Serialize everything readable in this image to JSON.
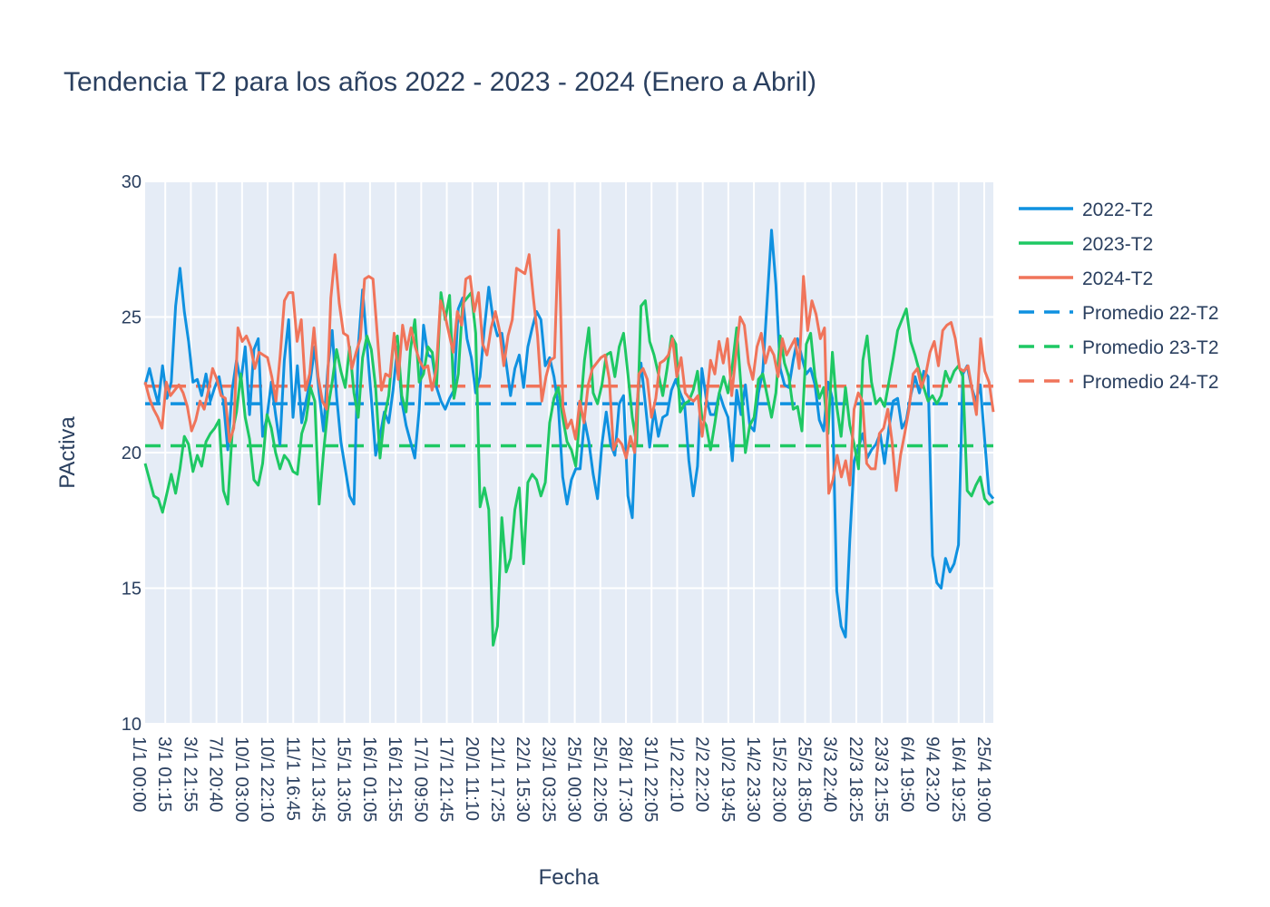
{
  "chart_data": {
    "type": "line",
    "title": "Tendencia T2 para los años 2022 - 2023 - 2024 (Enero a Abril)",
    "xlabel": "Fecha",
    "ylabel": "PActiva",
    "ylim": [
      10,
      30
    ],
    "yticks": [
      "10",
      "15",
      "20",
      "25",
      "30"
    ],
    "xticks": [
      "1/1 00:00",
      "3/1 01:15",
      "3/1 21:55",
      "7/1 20:40",
      "10/1 03:00",
      "10/1 22:10",
      "11/1 16:45",
      "12/1 13:45",
      "15/1 13:05",
      "16/1 01:05",
      "16/1 21:55",
      "17/1 09:50",
      "17/1 21:45",
      "20/1 11:10",
      "21/1 17:25",
      "22/1 15:30",
      "23/1 03:25",
      "25/1 00:30",
      "25/1 22:05",
      "28/1 17:30",
      "31/1 22:05",
      "1/2 22:10",
      "2/2 22:20",
      "10/2 19:45",
      "14/2 23:30",
      "15/2 23:00",
      "25/2 18:50",
      "3/3 22:40",
      "22/3 18:25",
      "23/3 21:55",
      "6/4 19:50",
      "9/4 23:20",
      "16/4 19:25",
      "25/4 19:00"
    ],
    "grid": true,
    "legend_position": "right",
    "series": [
      {
        "name": "2022-T2",
        "color": "#0f91e0",
        "style": "solid",
        "values": [
          22.5,
          23.1,
          22.4,
          21.8,
          23.2,
          22.0,
          22.6,
          25.4,
          26.8,
          25.2,
          24.1,
          22.6,
          22.7,
          22.1,
          22.9,
          21.9,
          22.4,
          22.8,
          21.9,
          20.1,
          22.3,
          23.4,
          22.6,
          23.9,
          21.4,
          23.8,
          24.2,
          20.6,
          21.3,
          22.6,
          21.4,
          20.3,
          23.4,
          24.9,
          21.3,
          23.2,
          21.1,
          21.9,
          22.7,
          23.9,
          22.2,
          20.8,
          23.1,
          24.5,
          22.1,
          20.4,
          19.4,
          18.4,
          18.1,
          23.9,
          26.0,
          24.0,
          22.0,
          19.9,
          20.6,
          21.5,
          21.1,
          22.3,
          23.9,
          21.9,
          21.0,
          20.4,
          19.8,
          21.6,
          24.7,
          23.6,
          23.5,
          22.4,
          21.9,
          21.6,
          22.0,
          22.3,
          25.3,
          25.7,
          24.2,
          23.5,
          22.2,
          22.8,
          24.6,
          26.1,
          24.9,
          24.3,
          24.4,
          23.3,
          22.1,
          23.1,
          23.6,
          22.4,
          23.9,
          24.6,
          25.2,
          24.9,
          23.2,
          23.5,
          22.8,
          21.7,
          19.1,
          18.1,
          19.0,
          19.4,
          19.4,
          21.2,
          20.4,
          19.2,
          18.3,
          20.3,
          21.5,
          20.3,
          19.9,
          21.8,
          22.1,
          18.4,
          17.6,
          21.6,
          23.3,
          21.8,
          20.2,
          21.6,
          20.6,
          21.3,
          21.4,
          22.3,
          22.7,
          22.2,
          21.8,
          19.7,
          18.4,
          19.5,
          23.1,
          22.0,
          21.4,
          21.4,
          22.2,
          21.7,
          21.3,
          19.7,
          22.3,
          21.4,
          22.5,
          21.0,
          20.8,
          22.2,
          23.0,
          25.6,
          28.2,
          26.2,
          23.1,
          22.5,
          22.4,
          23.4,
          24.2,
          23.5,
          22.9,
          23.1,
          22.5,
          21.2,
          20.8,
          22.6,
          22.0,
          14.9,
          13.6,
          13.2,
          16.8,
          19.7,
          20.2,
          20.7,
          19.8,
          20.1,
          20.3,
          20.7,
          19.6,
          20.9,
          21.9,
          22.0,
          20.9,
          21.2,
          22.1,
          22.8,
          22.2,
          23.0,
          22.8,
          16.2,
          15.2,
          15.0,
          16.1,
          15.6,
          15.9,
          16.6,
          22.9,
          23.2,
          22.4,
          21.9,
          22.5,
          20.5,
          18.5,
          18.3
        ]
      },
      {
        "name": "2023-T2",
        "color": "#1ec863",
        "style": "solid",
        "values": [
          19.6,
          19.0,
          18.4,
          18.3,
          17.8,
          18.5,
          19.2,
          18.5,
          19.4,
          20.6,
          20.3,
          19.3,
          19.9,
          19.5,
          20.4,
          20.7,
          20.9,
          21.2,
          18.6,
          18.1,
          20.7,
          21.5,
          22.9,
          21.3,
          20.5,
          19.0,
          18.8,
          19.6,
          21.4,
          20.9,
          20.0,
          19.4,
          19.9,
          19.7,
          19.3,
          19.2,
          20.7,
          21.2,
          22.4,
          21.9,
          18.1,
          20.0,
          21.6,
          22.6,
          23.8,
          23.0,
          22.4,
          23.9,
          22.2,
          21.3,
          23.5,
          24.3,
          23.8,
          22.4,
          19.8,
          21.3,
          22.1,
          23.9,
          24.3,
          22.1,
          21.5,
          23.8,
          24.9,
          22.6,
          22.9,
          23.9,
          23.7,
          22.5,
          25.9,
          24.9,
          25.8,
          22.0,
          22.9,
          25.5,
          25.7,
          25.9,
          24.4,
          18.0,
          18.7,
          17.9,
          12.9,
          13.6,
          17.6,
          15.6,
          16.1,
          17.9,
          18.7,
          15.9,
          18.9,
          19.2,
          19.0,
          18.4,
          18.9,
          21.1,
          22.0,
          22.4,
          21.3,
          20.4,
          20.1,
          19.5,
          21.5,
          23.4,
          24.6,
          22.2,
          21.8,
          22.5,
          23.6,
          23.7,
          22.8,
          23.9,
          24.4,
          22.9,
          21.3,
          20.3,
          25.4,
          25.6,
          24.1,
          23.6,
          22.9,
          22.1,
          23.1,
          24.3,
          24.0,
          21.5,
          21.8,
          21.9,
          22.3,
          23.0,
          21.3,
          21.0,
          20.1,
          21.1,
          22.2,
          22.8,
          22.2,
          23.2,
          24.6,
          22.4,
          20.0,
          21.0,
          21.3,
          22.7,
          22.9,
          22.1,
          21.3,
          22.2,
          24.3,
          23.3,
          22.8,
          21.6,
          21.7,
          20.8,
          24.0,
          24.4,
          22.8,
          22.0,
          22.4,
          20.7,
          23.7,
          21.7,
          20.6,
          22.4,
          21.0,
          20.3,
          19.4,
          23.4,
          24.3,
          22.6,
          21.8,
          22.0,
          21.7,
          22.6,
          23.5,
          24.5,
          24.9,
          25.3,
          24.1,
          23.6,
          23.0,
          22.4,
          21.9,
          22.1,
          21.8,
          22.1,
          23.0,
          22.6,
          23.0,
          23.2,
          22.8,
          18.6,
          18.4,
          18.8,
          19.1,
          18.3,
          18.1,
          18.2
        ]
      },
      {
        "name": "2024-T2",
        "color": "#f0745a",
        "style": "solid",
        "values": [
          22.6,
          22.0,
          21.6,
          21.3,
          20.9,
          22.6,
          22.1,
          22.3,
          22.5,
          22.2,
          21.7,
          20.8,
          21.2,
          21.9,
          21.6,
          22.3,
          23.1,
          22.7,
          22.1,
          22.0,
          20.4,
          20.9,
          24.6,
          24.1,
          24.3,
          23.9,
          23.1,
          23.7,
          23.6,
          23.5,
          22.8,
          21.9,
          23.6,
          25.6,
          25.9,
          25.9,
          24.1,
          24.9,
          22.3,
          22.9,
          24.6,
          22.8,
          21.9,
          21.6,
          25.7,
          27.3,
          25.5,
          24.4,
          24.3,
          23.1,
          23.7,
          24.2,
          26.4,
          26.5,
          26.4,
          24.4,
          22.3,
          22.9,
          22.8,
          24.4,
          22.7,
          24.7,
          23.8,
          24.6,
          23.9,
          23.4,
          23.1,
          23.2,
          22.3,
          23.1,
          25.6,
          25.1,
          24.4,
          23.7,
          25.2,
          24.7,
          26.4,
          26.5,
          25.2,
          25.9,
          24.0,
          23.6,
          24.6,
          25.2,
          24.5,
          23.2,
          24.3,
          24.9,
          26.8,
          26.7,
          26.6,
          27.3,
          25.7,
          24.3,
          21.9,
          22.8,
          23.4,
          23.5,
          28.2,
          21.7,
          20.9,
          21.2,
          20.5,
          21.9,
          21.1,
          22.5,
          23.1,
          23.3,
          23.5,
          23.6,
          22.7,
          20.1,
          20.5,
          20.3,
          19.8,
          20.6,
          20.0,
          22.9,
          23.1,
          22.7,
          21.3,
          22.0,
          23.3,
          23.4,
          23.6,
          24.2,
          22.8,
          23.5,
          22.2,
          22.0,
          21.9,
          22.1,
          20.6,
          21.9,
          23.4,
          22.9,
          24.1,
          23.3,
          24.2,
          22.1,
          23.6,
          25.0,
          24.7,
          23.3,
          22.7,
          23.9,
          24.4,
          23.3,
          23.9,
          23.6,
          22.8,
          24.2,
          23.6,
          23.9,
          24.2,
          23.1,
          26.5,
          24.5,
          25.6,
          25.1,
          24.2,
          24.6,
          18.5,
          19.0,
          19.9,
          19.1,
          19.7,
          18.8,
          21.6,
          22.2,
          21.9,
          19.6,
          19.4,
          19.4,
          20.7,
          20.9,
          21.6,
          20.4,
          18.6,
          19.9,
          20.7,
          21.6,
          22.9,
          23.1,
          22.4,
          22.9,
          23.7,
          24.1,
          23.2,
          24.5,
          24.7,
          24.8,
          24.2,
          23.1,
          23.0,
          23.2,
          22.3,
          21.4,
          24.2,
          23.0,
          22.6,
          21.5
        ]
      },
      {
        "name": "Promedio 22-T2",
        "color": "#0f91e0",
        "style": "dash",
        "values": [
          21.8
        ]
      },
      {
        "name": "Promedio 23-T2",
        "color": "#1ec863",
        "style": "dash",
        "values": [
          20.25
        ]
      },
      {
        "name": "Promedio 24-T2",
        "color": "#f0745a",
        "style": "dash",
        "values": [
          22.45
        ]
      }
    ]
  }
}
